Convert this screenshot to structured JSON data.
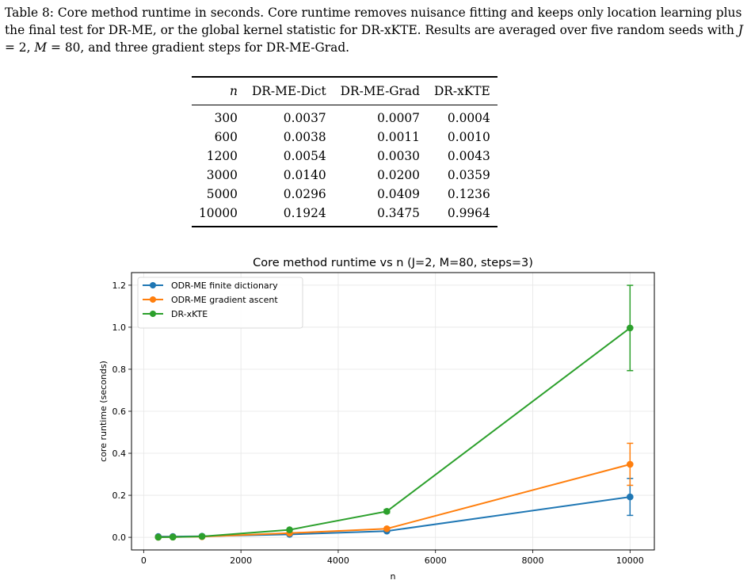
{
  "caption": {
    "label": "Table 8:",
    "part1": "Core method runtime in seconds. Core runtime removes nuisance fitting and keeps only location learning plus the final test for DR-ME, or the global kernel statistic for DR-xKTE. Results are averaged over five random seeds with ",
    "j_var": "J",
    "j_val": " = 2, ",
    "m_var": "M",
    "m_val": " = 80, and three gradient steps for DR-ME-Grad."
  },
  "table": {
    "headers": [
      "n",
      "DR-ME-Dict",
      "DR-ME-Grad",
      "DR-xKTE"
    ],
    "rows": [
      [
        "300",
        "0.0037",
        "0.0007",
        "0.0004"
      ],
      [
        "600",
        "0.0038",
        "0.0011",
        "0.0010"
      ],
      [
        "1200",
        "0.0054",
        "0.0030",
        "0.0043"
      ],
      [
        "3000",
        "0.0140",
        "0.0200",
        "0.0359"
      ],
      [
        "5000",
        "0.0296",
        "0.0409",
        "0.1236"
      ],
      [
        "10000",
        "0.1924",
        "0.3475",
        "0.9964"
      ]
    ]
  },
  "chart_data": {
    "type": "line",
    "title": "Core method runtime vs n (J=2, M=80, steps=3)",
    "xlabel": "n",
    "ylabel": "core runtime (seconds)",
    "xlim": [
      -250,
      10500
    ],
    "ylim": [
      -0.06,
      1.26
    ],
    "xticks": [
      0,
      2000,
      4000,
      6000,
      8000,
      10000
    ],
    "yticks": [
      0.0,
      0.2,
      0.4,
      0.6,
      0.8,
      1.0,
      1.2
    ],
    "grid": true,
    "legend_position": "top-left",
    "x": [
      300,
      600,
      1200,
      3000,
      5000,
      10000
    ],
    "series": [
      {
        "name": "ODR-ME finite dictionary",
        "color": "#1f77b4",
        "values": [
          0.0037,
          0.0038,
          0.0054,
          0.014,
          0.0296,
          0.1924
        ],
        "errors": [
          0.001,
          0.001,
          0.001,
          0.003,
          0.005,
          0.088
        ]
      },
      {
        "name": "ODR-ME gradient ascent",
        "color": "#ff7f0e",
        "values": [
          0.0007,
          0.0011,
          0.003,
          0.02,
          0.0409,
          0.3475
        ],
        "errors": [
          0.0005,
          0.0005,
          0.001,
          0.003,
          0.005,
          0.1
        ]
      },
      {
        "name": "DR-xKTE",
        "color": "#2ca02c",
        "values": [
          0.0004,
          0.001,
          0.0043,
          0.0359,
          0.1236,
          0.9964
        ],
        "errors": [
          0.0003,
          0.0005,
          0.001,
          0.004,
          0.008,
          0.203
        ]
      }
    ]
  }
}
